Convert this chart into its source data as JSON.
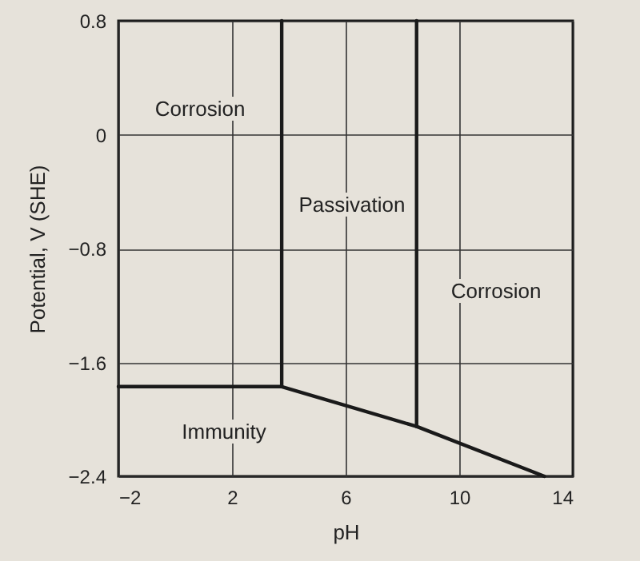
{
  "chart_data": {
    "type": "line",
    "xlabel": "pH",
    "ylabel": "Potential, V (SHE)",
    "xlim": [
      -2,
      14
    ],
    "xticks": [
      -2,
      2,
      6,
      10,
      14
    ],
    "ylim": [
      -2.4,
      0.8
    ],
    "yticks": [
      -2.4,
      -1.6,
      -0.8,
      {
        "value": 0,
        "label": "0"
      },
      0.8
    ],
    "grid": true,
    "series": [
      {
        "color": "#1a1a1a",
        "x": [
          -2,
          3.75,
          8.5,
          13
        ],
        "values": [
          -1.77,
          -1.77,
          -2.05,
          -2.4
        ]
      },
      {
        "color": "#1a1a1a",
        "x": [
          3.75,
          3.75
        ],
        "values": [
          -1.77,
          0.8
        ]
      },
      {
        "color": "#1a1a1a",
        "x": [
          8.5,
          8.5
        ],
        "values": [
          -2.05,
          0.8
        ]
      }
    ],
    "annotations": [
      "Corrosion",
      "Passivation",
      "Corrosion",
      "Immunity"
    ]
  }
}
